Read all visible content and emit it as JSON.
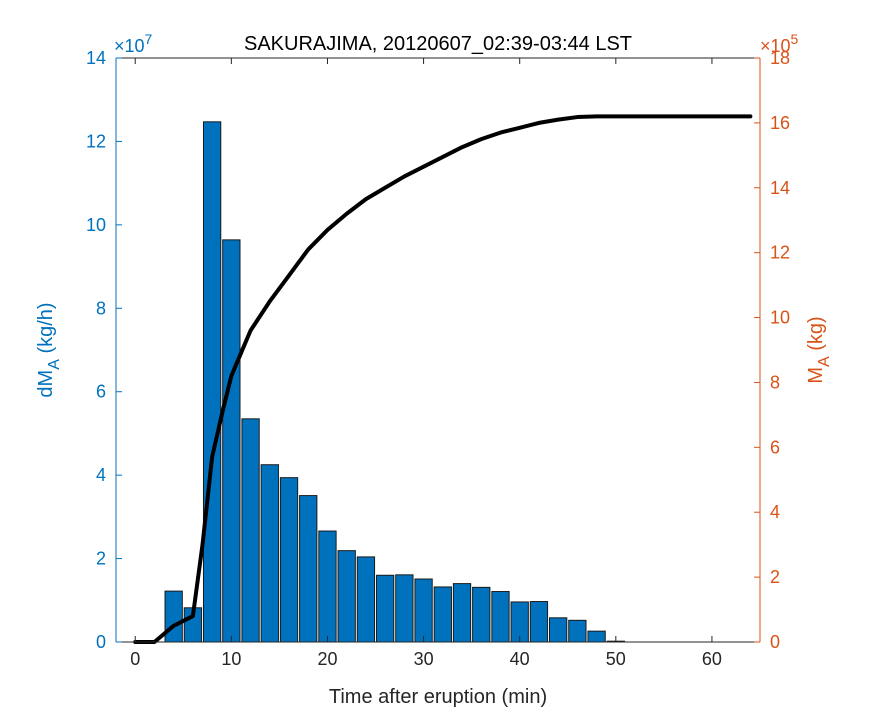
{
  "chart_data": {
    "type": "bar",
    "title": "SAKURAJIMA, 20120607_02:39-03:44 LST",
    "xlabel": "Time after eruption (min)",
    "ylabel_left": {
      "main": "dM",
      "sub": "A",
      "tail": " (kg/h)"
    },
    "ylabel_right": {
      "main": "M",
      "sub": "A",
      "tail": " (kg)"
    },
    "left_axis": {
      "color": "#0072BD",
      "exponent": {
        "base": "×10",
        "power": "7"
      },
      "ylim": [
        0,
        14
      ],
      "ticks": [
        0,
        2,
        4,
        6,
        8,
        10,
        12,
        14
      ]
    },
    "right_axis": {
      "color": "#D95319",
      "exponent": {
        "base": "×10",
        "power": "5"
      },
      "ylim": [
        0,
        18
      ],
      "ticks": [
        0,
        2,
        4,
        6,
        8,
        10,
        12,
        14,
        16,
        18
      ]
    },
    "xlim": [
      -2,
      65
    ],
    "x_ticks": [
      0,
      10,
      20,
      30,
      40,
      50,
      60
    ],
    "bar_color": "#0072BD",
    "bar_width": 1.8,
    "bars": {
      "x": [
        4,
        6,
        8,
        10,
        12,
        14,
        16,
        18,
        20,
        22,
        24,
        26,
        28,
        30,
        32,
        34,
        36,
        38,
        40,
        42,
        44,
        46,
        48,
        50
      ],
      "values": [
        1.22,
        0.82,
        12.47,
        9.64,
        5.35,
        4.25,
        3.94,
        3.51,
        2.66,
        2.19,
        2.04,
        1.6,
        1.61,
        1.51,
        1.32,
        1.4,
        1.31,
        1.21,
        0.96,
        0.97,
        0.58,
        0.52,
        0.26,
        0.02
      ]
    },
    "line": {
      "color": "#000000",
      "axis": "right",
      "x": [
        0,
        2,
        3,
        4,
        5,
        6,
        7,
        8,
        9,
        10,
        12,
        14,
        16,
        18,
        20,
        22,
        24,
        26,
        28,
        30,
        32,
        34,
        36,
        38,
        40,
        42,
        44,
        46,
        48,
        50,
        55,
        60,
        64
      ],
      "y": [
        0,
        0,
        0.25,
        0.5,
        0.65,
        0.8,
        3.0,
        5.7,
        7.0,
        8.2,
        9.6,
        10.5,
        11.3,
        12.1,
        12.7,
        13.2,
        13.65,
        14.0,
        14.35,
        14.65,
        14.95,
        15.25,
        15.5,
        15.7,
        15.85,
        16.0,
        16.1,
        16.18,
        16.2,
        16.2,
        16.2,
        16.2,
        16.2
      ]
    }
  }
}
